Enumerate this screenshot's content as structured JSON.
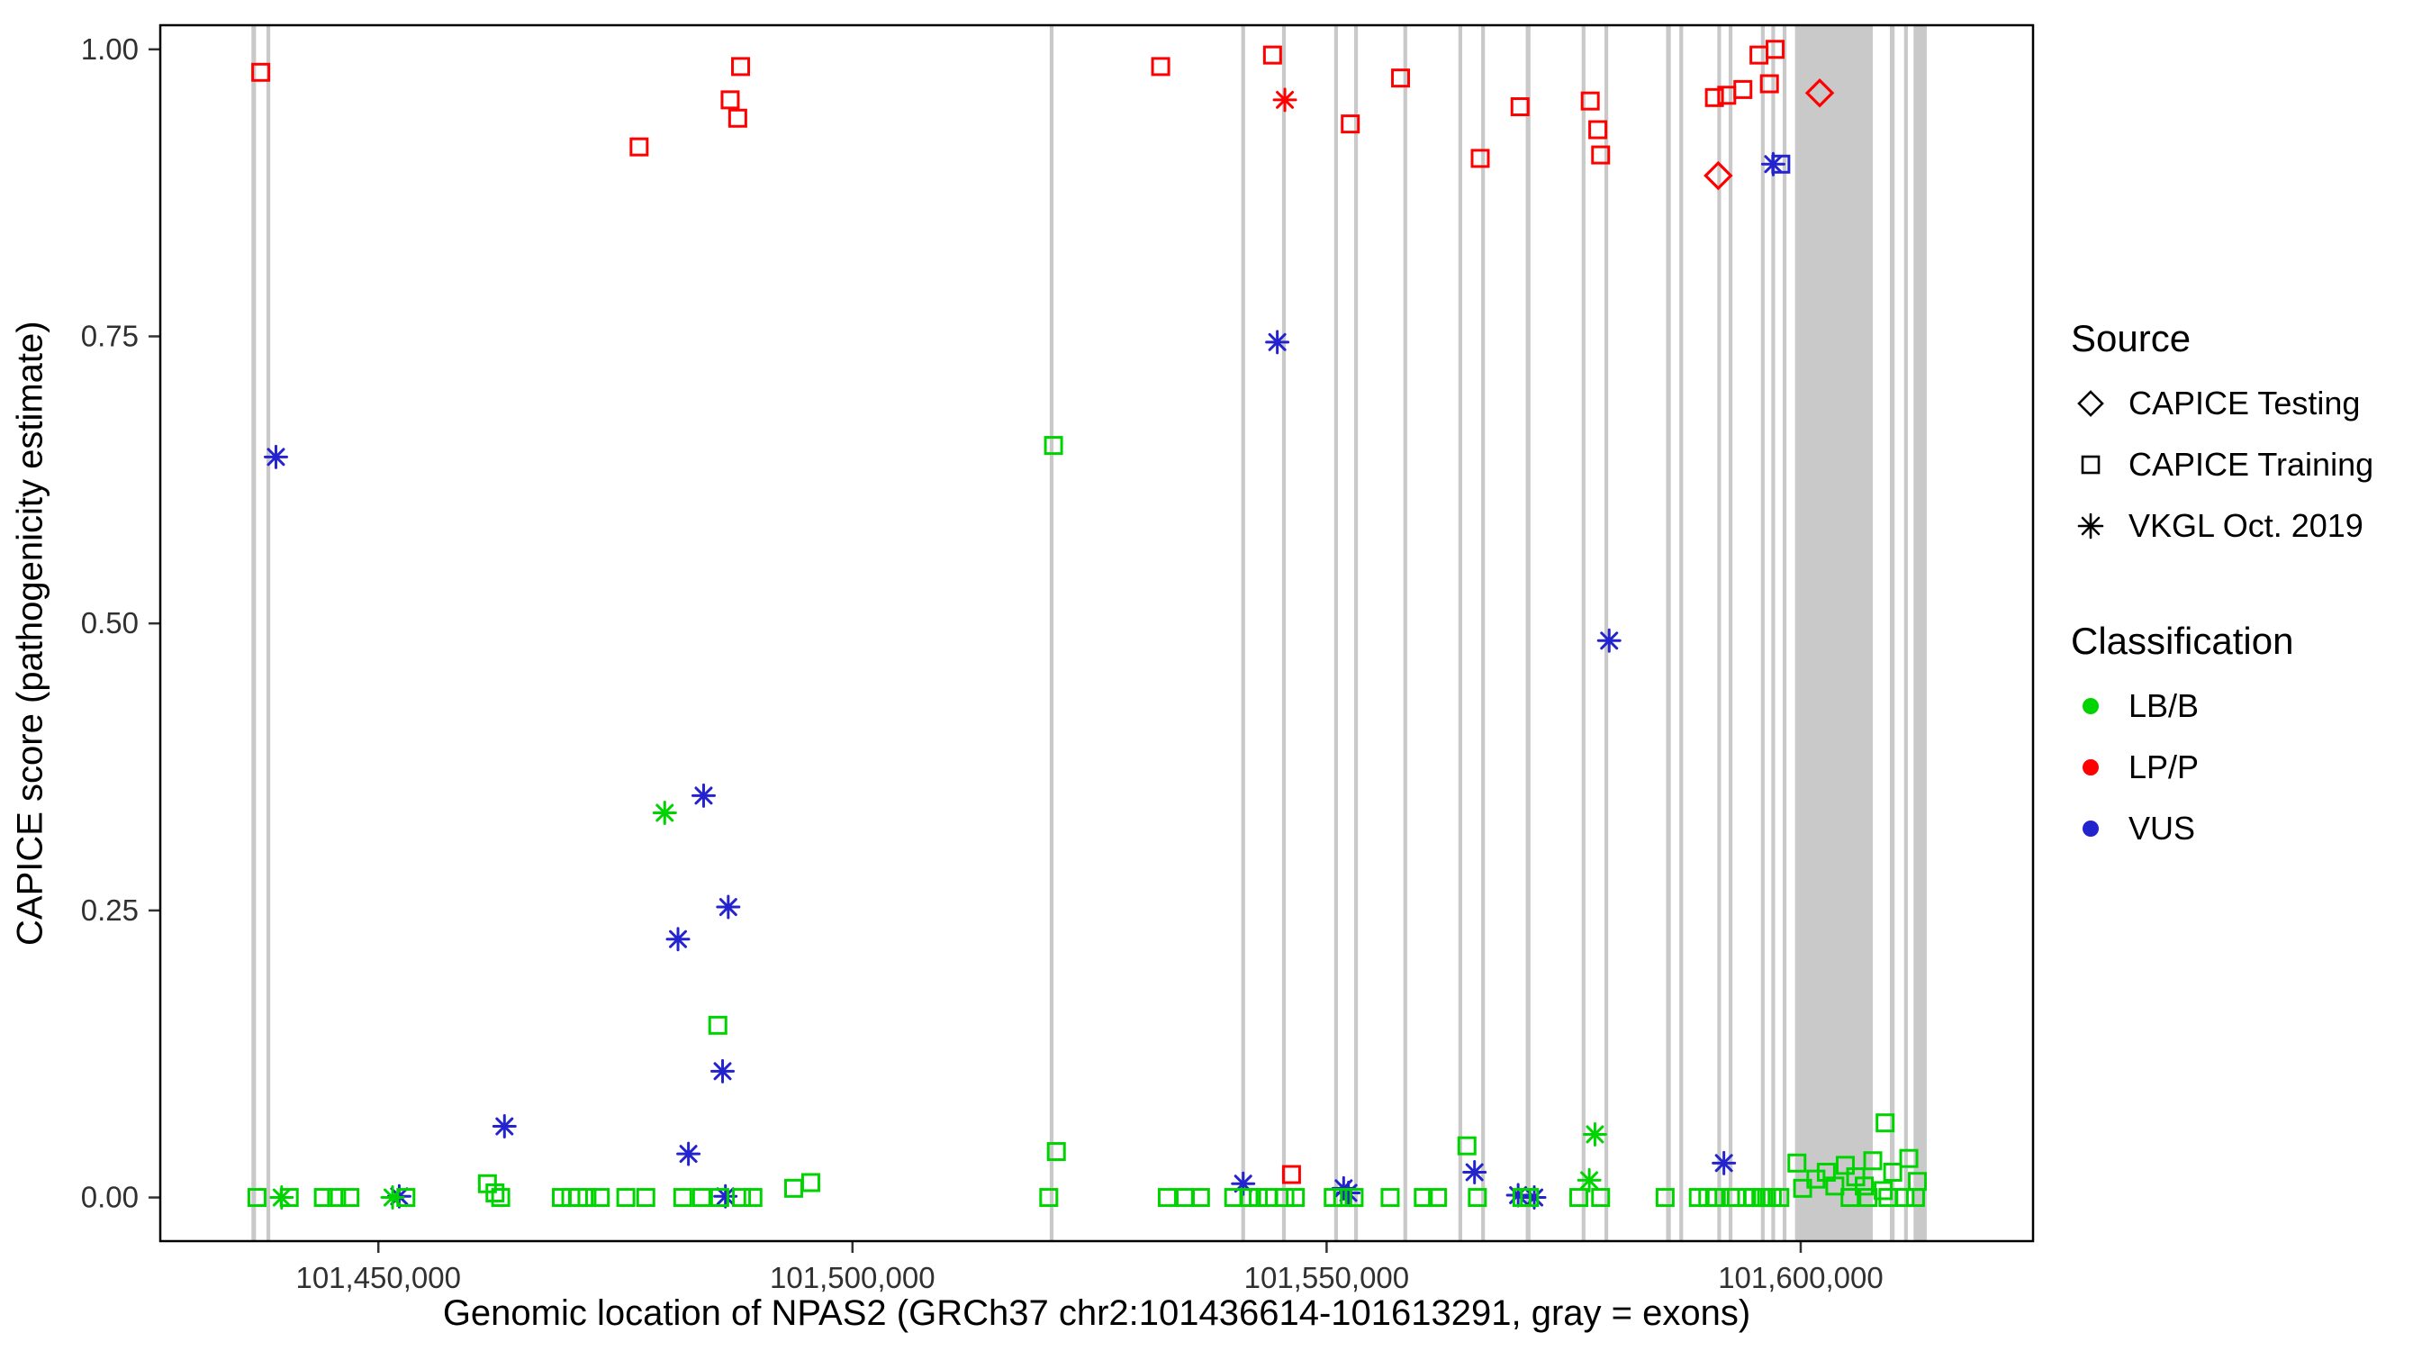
{
  "chart_data": {
    "type": "scatter",
    "title": "",
    "xlabel": "Genomic location of NPAS2 (GRCh37 chr2:101436614-101613291, gray = exons)",
    "ylabel": "CAPICE score (pathogenicity estimate)",
    "xlim": [
      101427000,
      101624500
    ],
    "ylim": [
      -0.038,
      1.021
    ],
    "grid": false,
    "x_ticks": [
      {
        "value": 101450000,
        "label": "101,450,000"
      },
      {
        "value": 101500000,
        "label": "101,500,000"
      },
      {
        "value": 101550000,
        "label": "101,550,000"
      },
      {
        "value": 101600000,
        "label": "101,600,000"
      }
    ],
    "y_ticks": [
      {
        "value": 0.0,
        "label": "0.00"
      },
      {
        "value": 0.25,
        "label": "0.25"
      },
      {
        "value": 0.5,
        "label": "0.50"
      },
      {
        "value": 0.75,
        "label": "0.75"
      },
      {
        "value": 1.0,
        "label": "1.00"
      }
    ],
    "exon_color": "#c9c9c9",
    "exons": [
      [
        101436614,
        101437100
      ],
      [
        101438200,
        101438600
      ],
      [
        101520800,
        101521200
      ],
      [
        101541000,
        101541400
      ],
      [
        101545300,
        101545700
      ],
      [
        101550800,
        101551200
      ],
      [
        101552900,
        101553300
      ],
      [
        101558100,
        101558500
      ],
      [
        101563900,
        101564300
      ],
      [
        101566300,
        101566700
      ],
      [
        101571000,
        101571500
      ],
      [
        101576900,
        101577300
      ],
      [
        101579300,
        101579700
      ],
      [
        101585800,
        101586300
      ],
      [
        101587200,
        101587600
      ],
      [
        101591200,
        101591600
      ],
      [
        101592400,
        101592800
      ],
      [
        101595800,
        101596200
      ],
      [
        101596900,
        101597300
      ],
      [
        101598100,
        101598500
      ],
      [
        101599400,
        101607600
      ],
      [
        101609400,
        101609900
      ],
      [
        101610900,
        101611300
      ],
      [
        101611900,
        101613291
      ]
    ],
    "classification_colors": {
      "LB/B": "#00d400",
      "LP/P": "#ff0000",
      "VUS": "#2424cf"
    },
    "source_shapes": {
      "testing": "diamond",
      "training": "square",
      "vkgl": "asterisk"
    },
    "point_columns": [
      "x",
      "y",
      "classification",
      "source"
    ],
    "points": [
      [
        101437600,
        0.98,
        "LP/P",
        "training"
      ],
      [
        101477500,
        0.915,
        "LP/P",
        "training"
      ],
      [
        101488200,
        0.985,
        "LP/P",
        "training"
      ],
      [
        101487100,
        0.956,
        "LP/P",
        "training"
      ],
      [
        101487900,
        0.94,
        "LP/P",
        "training"
      ],
      [
        101532500,
        0.985,
        "LP/P",
        "training"
      ],
      [
        101544300,
        0.995,
        "LP/P",
        "training"
      ],
      [
        101552500,
        0.935,
        "LP/P",
        "training"
      ],
      [
        101557800,
        0.975,
        "LP/P",
        "training"
      ],
      [
        101566200,
        0.905,
        "LP/P",
        "training"
      ],
      [
        101570400,
        0.95,
        "LP/P",
        "training"
      ],
      [
        101577800,
        0.955,
        "LP/P",
        "training"
      ],
      [
        101578600,
        0.93,
        "LP/P",
        "training"
      ],
      [
        101578900,
        0.908,
        "LP/P",
        "training"
      ],
      [
        101590900,
        0.958,
        "LP/P",
        "training"
      ],
      [
        101592200,
        0.96,
        "LP/P",
        "training"
      ],
      [
        101593900,
        0.965,
        "LP/P",
        "training"
      ],
      [
        101595600,
        0.995,
        "LP/P",
        "training"
      ],
      [
        101597300,
        1.0,
        "LP/P",
        "training"
      ],
      [
        101596700,
        0.97,
        "LP/P",
        "training"
      ],
      [
        101546300,
        0.02,
        "LP/P",
        "training"
      ],
      [
        101545600,
        0.956,
        "LP/P",
        "vkgl"
      ],
      [
        101591300,
        0.89,
        "LP/P",
        "testing"
      ],
      [
        101602000,
        0.962,
        "LP/P",
        "testing"
      ],
      [
        101597900,
        0.9,
        "VUS",
        "training"
      ],
      [
        101439200,
        0.645,
        "VUS",
        "vkgl"
      ],
      [
        101544800,
        0.745,
        "VUS",
        "vkgl"
      ],
      [
        101579800,
        0.485,
        "VUS",
        "vkgl"
      ],
      [
        101484300,
        0.35,
        "VUS",
        "vkgl"
      ],
      [
        101486900,
        0.253,
        "VUS",
        "vkgl"
      ],
      [
        101481600,
        0.225,
        "VUS",
        "vkgl"
      ],
      [
        101486300,
        0.11,
        "VUS",
        "vkgl"
      ],
      [
        101463300,
        0.062,
        "VUS",
        "vkgl"
      ],
      [
        101482700,
        0.038,
        "VUS",
        "vkgl"
      ],
      [
        101597100,
        0.9,
        "VUS",
        "vkgl"
      ],
      [
        101591900,
        0.03,
        "VUS",
        "vkgl"
      ],
      [
        101565600,
        0.022,
        "VUS",
        "vkgl"
      ],
      [
        101541200,
        0.012,
        "VUS",
        "vkgl"
      ],
      [
        101551800,
        0.008,
        "VUS",
        "vkgl"
      ],
      [
        101552300,
        0.004,
        "VUS",
        "vkgl"
      ],
      [
        101570200,
        0.002,
        "VUS",
        "vkgl"
      ],
      [
        101452200,
        0.001,
        "VUS",
        "vkgl"
      ],
      [
        101486600,
        0.001,
        "VUS",
        "vkgl"
      ],
      [
        101571900,
        0.0,
        "VUS",
        "vkgl"
      ],
      [
        101480200,
        0.335,
        "LB/B",
        "vkgl"
      ],
      [
        101578300,
        0.055,
        "LB/B",
        "vkgl"
      ],
      [
        101577700,
        0.015,
        "LB/B",
        "vkgl"
      ],
      [
        101439800,
        0.0,
        "LB/B",
        "vkgl"
      ],
      [
        101451500,
        0.0,
        "LB/B",
        "vkgl"
      ],
      [
        101521200,
        0.655,
        "LB/B",
        "training"
      ],
      [
        101485800,
        0.15,
        "LB/B",
        "training"
      ],
      [
        101521500,
        0.04,
        "LB/B",
        "training"
      ],
      [
        101564800,
        0.045,
        "LB/B",
        "training"
      ],
      [
        101599600,
        0.03,
        "LB/B",
        "training"
      ],
      [
        101608900,
        0.065,
        "LB/B",
        "training"
      ],
      [
        101493800,
        0.008,
        "LB/B",
        "training"
      ],
      [
        101495600,
        0.013,
        "LB/B",
        "training"
      ],
      [
        101461500,
        0.012,
        "LB/B",
        "training"
      ],
      [
        101462300,
        0.004,
        "LB/B",
        "training"
      ],
      [
        101437200,
        0.0,
        "LB/B",
        "training"
      ],
      [
        101440600,
        0.0,
        "LB/B",
        "training"
      ],
      [
        101444200,
        0.0,
        "LB/B",
        "training"
      ],
      [
        101445600,
        0.0,
        "LB/B",
        "training"
      ],
      [
        101447000,
        0.0,
        "LB/B",
        "training"
      ],
      [
        101452900,
        0.0,
        "LB/B",
        "training"
      ],
      [
        101462900,
        0.0,
        "LB/B",
        "training"
      ],
      [
        101469300,
        0.0,
        "LB/B",
        "training"
      ],
      [
        101470300,
        0.0,
        "LB/B",
        "training"
      ],
      [
        101471100,
        0.0,
        "LB/B",
        "training"
      ],
      [
        101472000,
        0.0,
        "LB/B",
        "training"
      ],
      [
        101473400,
        0.0,
        "LB/B",
        "training"
      ],
      [
        101476100,
        0.0,
        "LB/B",
        "training"
      ],
      [
        101478200,
        0.0,
        "LB/B",
        "training"
      ],
      [
        101482100,
        0.0,
        "LB/B",
        "training"
      ],
      [
        101484100,
        0.0,
        "LB/B",
        "training"
      ],
      [
        101486000,
        0.0,
        "LB/B",
        "training"
      ],
      [
        101488300,
        0.0,
        "LB/B",
        "training"
      ],
      [
        101489500,
        0.0,
        "LB/B",
        "training"
      ],
      [
        101520700,
        0.0,
        "LB/B",
        "training"
      ],
      [
        101533200,
        0.0,
        "LB/B",
        "training"
      ],
      [
        101535100,
        0.0,
        "LB/B",
        "training"
      ],
      [
        101536700,
        0.0,
        "LB/B",
        "training"
      ],
      [
        101540200,
        0.0,
        "LB/B",
        "training"
      ],
      [
        101541800,
        0.0,
        "LB/B",
        "training"
      ],
      [
        101542800,
        0.0,
        "LB/B",
        "training"
      ],
      [
        101543800,
        0.0,
        "LB/B",
        "training"
      ],
      [
        101545600,
        0.0,
        "LB/B",
        "training"
      ],
      [
        101546700,
        0.0,
        "LB/B",
        "training"
      ],
      [
        101550700,
        0.0,
        "LB/B",
        "training"
      ],
      [
        101551700,
        0.0,
        "LB/B",
        "training"
      ],
      [
        101552900,
        0.0,
        "LB/B",
        "training"
      ],
      [
        101556700,
        0.0,
        "LB/B",
        "training"
      ],
      [
        101560200,
        0.0,
        "LB/B",
        "training"
      ],
      [
        101561700,
        0.0,
        "LB/B",
        "training"
      ],
      [
        101565900,
        0.0,
        "LB/B",
        "training"
      ],
      [
        101570600,
        0.0,
        "LB/B",
        "training"
      ],
      [
        101571400,
        0.0,
        "LB/B",
        "training"
      ],
      [
        101576600,
        0.0,
        "LB/B",
        "training"
      ],
      [
        101578900,
        0.0,
        "LB/B",
        "training"
      ],
      [
        101585700,
        0.0,
        "LB/B",
        "training"
      ],
      [
        101589200,
        0.0,
        "LB/B",
        "training"
      ],
      [
        101590200,
        0.0,
        "LB/B",
        "training"
      ],
      [
        101591100,
        0.0,
        "LB/B",
        "training"
      ],
      [
        101592600,
        0.0,
        "LB/B",
        "training"
      ],
      [
        101593200,
        0.0,
        "LB/B",
        "training"
      ],
      [
        101594300,
        0.0,
        "LB/B",
        "training"
      ],
      [
        101595000,
        0.0,
        "LB/B",
        "training"
      ],
      [
        101595800,
        0.0,
        "LB/B",
        "training"
      ],
      [
        101596400,
        0.0,
        "LB/B",
        "training"
      ],
      [
        101597000,
        0.0,
        "LB/B",
        "training"
      ],
      [
        101597800,
        0.0,
        "LB/B",
        "training"
      ],
      [
        101605200,
        0.0,
        "LB/B",
        "training"
      ],
      [
        101607100,
        0.0,
        "LB/B",
        "training"
      ],
      [
        101609200,
        0.0,
        "LB/B",
        "training"
      ],
      [
        101611000,
        0.0,
        "LB/B",
        "training"
      ],
      [
        101612100,
        0.0,
        "LB/B",
        "training"
      ],
      [
        101600200,
        0.008,
        "LB/B",
        "training"
      ],
      [
        101601600,
        0.016,
        "LB/B",
        "training"
      ],
      [
        101602700,
        0.022,
        "LB/B",
        "training"
      ],
      [
        101603600,
        0.01,
        "LB/B",
        "training"
      ],
      [
        101604700,
        0.028,
        "LB/B",
        "training"
      ],
      [
        101605800,
        0.018,
        "LB/B",
        "training"
      ],
      [
        101606700,
        0.01,
        "LB/B",
        "training"
      ],
      [
        101607600,
        0.032,
        "LB/B",
        "training"
      ],
      [
        101608700,
        0.006,
        "LB/B",
        "training"
      ],
      [
        101609700,
        0.022,
        "LB/B",
        "training"
      ],
      [
        101611400,
        0.034,
        "LB/B",
        "training"
      ],
      [
        101612300,
        0.014,
        "LB/B",
        "training"
      ]
    ]
  },
  "legend": {
    "source": {
      "title": "Source",
      "items": [
        {
          "label": "CAPICE Testing",
          "shape": "diamond"
        },
        {
          "label": "CAPICE Training",
          "shape": "square"
        },
        {
          "label": "VKGL Oct. 2019",
          "shape": "asterisk"
        }
      ]
    },
    "classification": {
      "title": "Classification",
      "items": [
        {
          "label": "LB/B",
          "color": "#00d400"
        },
        {
          "label": "LP/P",
          "color": "#ff0000"
        },
        {
          "label": "VUS",
          "color": "#2424cf"
        }
      ]
    }
  }
}
